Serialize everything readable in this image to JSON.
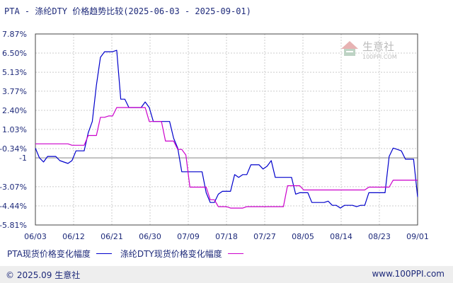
{
  "title": "PTA - 涤纶DTY 价格趋势比较(2025-06-03 - 2025-09-01)",
  "footer": {
    "copyright": "© 2025.09 生意社",
    "url": "www.100PPI.com"
  },
  "watermark": {
    "name": "生意社",
    "url": "100PPI.COM"
  },
  "colors": {
    "series1": "#0000cc",
    "series2": "#cc00cc",
    "text": "#1e2a7a",
    "grid": "#cccccc",
    "axis": "#444444"
  },
  "chart_data": {
    "type": "line",
    "title": "PTA - 涤纶DTY 价格趋势比较(2025-06-03 - 2025-09-01)",
    "xlabel": "",
    "ylabel": "",
    "grid": true,
    "legend_position": "bottom",
    "x_range": [
      "06/03",
      "09/01"
    ],
    "x_ticks": [
      "06/03",
      "06/12",
      "06/21",
      "06/30",
      "07/09",
      "07/18",
      "07/27",
      "08/05",
      "08/14",
      "08/23",
      "09/01"
    ],
    "y_ticks": [
      "7.87%",
      "6.50%",
      "5.13%",
      "3.77%",
      "2.40%",
      "1.03%",
      "-0.34%",
      "-1",
      "-3.07%",
      "-4.44%",
      "-5.81%"
    ],
    "ylim": [
      -5.81,
      7.87
    ],
    "reference_line": -1,
    "series": [
      {
        "name": "PTA现货价格变化幅度",
        "color": "#0000cc",
        "values": [
          -0.3,
          -1.0,
          -1.3,
          -0.9,
          -0.9,
          -0.9,
          -1.2,
          -1.3,
          -1.4,
          -1.2,
          -0.5,
          -0.5,
          -0.5,
          0.8,
          1.6,
          4.2,
          6.2,
          6.6,
          6.6,
          6.6,
          6.7,
          3.2,
          3.2,
          2.6,
          2.6,
          2.6,
          2.6,
          3.0,
          2.6,
          1.6,
          1.6,
          1.6,
          1.6,
          1.6,
          0.4,
          -0.3,
          -2.0,
          -2.0,
          -2.0,
          -2.0,
          -2.0,
          -2.0,
          -3.5,
          -4.2,
          -4.2,
          -3.6,
          -3.4,
          -3.4,
          -3.4,
          -2.2,
          -2.4,
          -2.2,
          -2.2,
          -1.5,
          -1.5,
          -1.5,
          -1.8,
          -1.6,
          -1.2,
          -2.4,
          -2.4,
          -2.4,
          -2.4,
          -2.4,
          -3.6,
          -3.5,
          -3.5,
          -3.5,
          -4.2,
          -4.2,
          -4.2,
          -4.2,
          -4.1,
          -4.4,
          -4.4,
          -4.6,
          -4.4,
          -4.4,
          -4.4,
          -4.5,
          -4.4,
          -4.4,
          -3.5,
          -3.5,
          -3.5,
          -3.5,
          -3.5,
          -0.9,
          -0.3,
          -0.4,
          -0.5,
          -1.1,
          -1.1,
          -1.1,
          -3.8
        ]
      },
      {
        "name": "涤纶DTY现货价格变化幅度",
        "color": "#cc00cc",
        "values": [
          0.0,
          0.0,
          0.0,
          0.0,
          0.0,
          0.0,
          0.0,
          0.0,
          0.0,
          -0.1,
          -0.1,
          -0.1,
          -0.1,
          0.6,
          0.6,
          0.6,
          1.9,
          1.9,
          2.0,
          2.0,
          2.6,
          2.6,
          2.6,
          2.6,
          2.6,
          2.6,
          2.6,
          2.6,
          1.6,
          1.6,
          1.6,
          1.6,
          0.2,
          0.2,
          0.2,
          -0.4,
          -0.4,
          -0.8,
          -3.1,
          -3.1,
          -3.1,
          -3.1,
          -3.1,
          -4.0,
          -4.0,
          -4.5,
          -4.5,
          -4.5,
          -4.6,
          -4.6,
          -4.6,
          -4.6,
          -4.5,
          -4.5,
          -4.5,
          -4.5,
          -4.5,
          -4.5,
          -4.5,
          -4.5,
          -4.5,
          -4.5,
          -3.0,
          -3.0,
          -3.0,
          -3.0,
          -3.3,
          -3.3,
          -3.3,
          -3.3,
          -3.3,
          -3.3,
          -3.3,
          -3.3,
          -3.3,
          -3.3,
          -3.3,
          -3.3,
          -3.3,
          -3.3,
          -3.3,
          -3.3,
          -3.1,
          -3.1,
          -3.1,
          -3.1,
          -3.1,
          -3.1,
          -2.6,
          -2.6,
          -2.6,
          -2.6,
          -2.6,
          -2.6,
          -2.6
        ]
      }
    ]
  }
}
